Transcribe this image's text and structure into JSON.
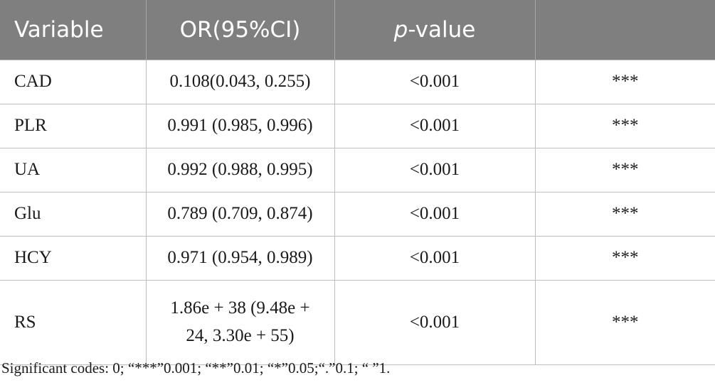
{
  "table": {
    "headers": {
      "variable": "Variable",
      "or_ci": "OR(95%CI)",
      "p_italic": "p",
      "p_rest": "-value",
      "significance": ""
    },
    "rows": [
      {
        "variable": "CAD",
        "or_ci": "0.108(0.043, 0.255)",
        "p_value": "<0.001",
        "significance": "***"
      },
      {
        "variable": "PLR",
        "or_ci": "0.991 (0.985, 0.996)",
        "p_value": "<0.001",
        "significance": "***"
      },
      {
        "variable": "UA",
        "or_ci": "0.992 (0.988, 0.995)",
        "p_value": "<0.001",
        "significance": "***"
      },
      {
        "variable": "Glu",
        "or_ci": "0.789 (0.709, 0.874)",
        "p_value": "<0.001",
        "significance": "***"
      },
      {
        "variable": "HCY",
        "or_ci": "0.971 (0.954, 0.989)",
        "p_value": "<0.001",
        "significance": "***"
      },
      {
        "variable": "RS",
        "or_ci_line1": "1.86e + 38 (9.48e +",
        "or_ci_line2": "24, 3.30e + 55)",
        "p_value": "<0.001",
        "significance": "***"
      }
    ]
  },
  "footnote": "Significant codes: 0; “***”0.001; “**”0.01; “*”0.05;“.”0.1; “ ”1."
}
